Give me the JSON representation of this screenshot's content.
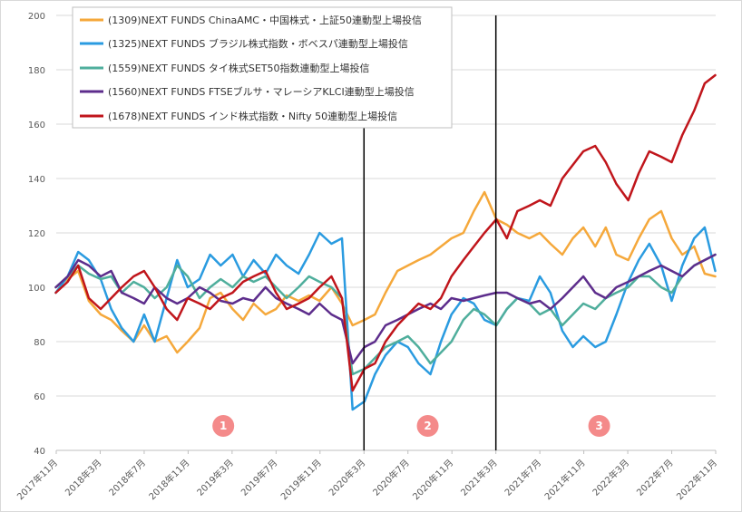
{
  "chart_data": {
    "type": "line",
    "title": "",
    "xlabel": "",
    "ylabel": "",
    "ylim": [
      40,
      200
    ],
    "yticks": [
      40,
      60,
      80,
      100,
      120,
      140,
      160,
      180,
      200
    ],
    "ytick_labels": [
      "40",
      "60",
      "80",
      "100",
      "120",
      "140",
      "160",
      "180",
      "200"
    ],
    "xlim": [
      "2017-11",
      "2022-11"
    ],
    "xtick_labels": [
      "2017年11月",
      "2018年3月",
      "2018年7月",
      "2018年11月",
      "2019年3月",
      "2019年7月",
      "2019年11月",
      "2020年3月",
      "2020年7月",
      "2020年11月",
      "2021年3月",
      "2021年7月",
      "2021年11月",
      "2022年3月",
      "2022年7月",
      "2022年11月"
    ],
    "grid": "horizontal",
    "legend_position": "top-left",
    "vertical_lines": [
      {
        "date": "2020-03"
      },
      {
        "date": "2021-03"
      }
    ],
    "period_markers": [
      {
        "label": "1",
        "x": 2019.1,
        "y": 49
      },
      {
        "label": "2",
        "x": 2020.65,
        "y": 49
      },
      {
        "label": "3",
        "x": 2021.95,
        "y": 49
      }
    ],
    "marker_color": "#f48a8a",
    "series": [
      {
        "name": "(1309)NEXT FUNDS ChinaAMC・中国株式・上証50連動型上場投信",
        "color": "#f5a83b",
        "x": [
          2017.83,
          2017.92,
          2018.0,
          2018.08,
          2018.17,
          2018.25,
          2018.33,
          2018.42,
          2018.5,
          2018.58,
          2018.67,
          2018.75,
          2018.83,
          2018.92,
          2019.0,
          2019.08,
          2019.17,
          2019.25,
          2019.33,
          2019.42,
          2019.5,
          2019.58,
          2019.67,
          2019.75,
          2019.83,
          2019.92,
          2020.0,
          2020.08,
          2020.17,
          2020.25,
          2020.33,
          2020.42,
          2020.5,
          2020.58,
          2020.67,
          2020.75,
          2020.83,
          2020.92,
          2021.0,
          2021.08,
          2021.17,
          2021.25,
          2021.33,
          2021.42,
          2021.5,
          2021.58,
          2021.67,
          2021.75,
          2021.83,
          2021.92,
          2022.0,
          2022.08,
          2022.17,
          2022.25,
          2022.33,
          2022.42,
          2022.5,
          2022.58,
          2022.67,
          2022.75,
          2022.83
        ],
        "values": [
          100,
          103,
          106,
          95,
          90,
          88,
          84,
          80,
          86,
          80,
          82,
          76,
          80,
          85,
          96,
          98,
          92,
          88,
          94,
          90,
          92,
          97,
          95,
          97,
          95,
          100,
          94,
          86,
          88,
          90,
          98,
          106,
          108,
          110,
          112,
          115,
          118,
          120,
          128,
          135,
          125,
          123,
          120,
          118,
          120,
          116,
          112,
          118,
          122,
          115,
          122,
          112,
          110,
          118,
          125,
          128,
          118,
          112,
          115,
          105,
          104
        ]
      },
      {
        "name": "(1325)NEXT FUNDS ブラジル株式指数・ボベスパ連動型上場投信",
        "color": "#2a9be0",
        "x": [
          2017.83,
          2017.92,
          2018.0,
          2018.08,
          2018.17,
          2018.25,
          2018.33,
          2018.42,
          2018.5,
          2018.58,
          2018.67,
          2018.75,
          2018.83,
          2018.92,
          2019.0,
          2019.08,
          2019.17,
          2019.25,
          2019.33,
          2019.42,
          2019.5,
          2019.58,
          2019.67,
          2019.75,
          2019.83,
          2019.92,
          2020.0,
          2020.08,
          2020.17,
          2020.25,
          2020.33,
          2020.42,
          2020.5,
          2020.58,
          2020.67,
          2020.75,
          2020.83,
          2020.92,
          2021.0,
          2021.08,
          2021.17,
          2021.25,
          2021.33,
          2021.42,
          2021.5,
          2021.58,
          2021.67,
          2021.75,
          2021.83,
          2021.92,
          2022.0,
          2022.08,
          2022.17,
          2022.25,
          2022.33,
          2022.42,
          2022.5,
          2022.58,
          2022.67,
          2022.75,
          2022.83
        ],
        "values": [
          98,
          104,
          113,
          110,
          103,
          92,
          85,
          80,
          90,
          80,
          96,
          110,
          100,
          103,
          112,
          108,
          112,
          104,
          110,
          105,
          112,
          108,
          105,
          112,
          120,
          116,
          118,
          55,
          58,
          68,
          75,
          80,
          78,
          72,
          68,
          80,
          90,
          96,
          94,
          88,
          86,
          92,
          96,
          95,
          104,
          98,
          84,
          78,
          82,
          78,
          80,
          90,
          102,
          110,
          116,
          108,
          95,
          108,
          118,
          122,
          106
        ]
      },
      {
        "name": "(1559)NEXT FUNDS タイ株式SET50指数連動型上場投信",
        "color": "#4fae9c",
        "x": [
          2017.83,
          2017.92,
          2018.0,
          2018.08,
          2018.17,
          2018.25,
          2018.33,
          2018.42,
          2018.5,
          2018.58,
          2018.67,
          2018.75,
          2018.83,
          2018.92,
          2019.0,
          2019.08,
          2019.17,
          2019.25,
          2019.33,
          2019.42,
          2019.5,
          2019.58,
          2019.67,
          2019.75,
          2019.83,
          2019.92,
          2020.0,
          2020.08,
          2020.17,
          2020.25,
          2020.33,
          2020.42,
          2020.5,
          2020.58,
          2020.67,
          2020.75,
          2020.83,
          2020.92,
          2021.0,
          2021.08,
          2021.17,
          2021.25,
          2021.33,
          2021.42,
          2021.5,
          2021.58,
          2021.67,
          2021.75,
          2021.83,
          2021.92,
          2022.0,
          2022.08,
          2022.17,
          2022.25,
          2022.33,
          2022.42,
          2022.5,
          2022.58,
          2022.67,
          2022.75,
          2022.83
        ],
        "values": [
          100,
          104,
          108,
          105,
          103,
          104,
          98,
          102,
          100,
          96,
          100,
          108,
          104,
          96,
          100,
          103,
          100,
          104,
          102,
          104,
          100,
          96,
          100,
          104,
          102,
          100,
          96,
          68,
          70,
          74,
          78,
          80,
          82,
          78,
          72,
          76,
          80,
          88,
          92,
          90,
          86,
          92,
          96,
          94,
          90,
          92,
          86,
          90,
          94,
          92,
          96,
          98,
          100,
          104,
          104,
          100,
          98,
          104,
          108,
          110,
          112
        ]
      },
      {
        "name": "(1560)NEXT FUNDS FTSEブルサ・マレーシアKLCI連動型上場投信",
        "color": "#5d2d8c",
        "x": [
          2017.83,
          2017.92,
          2018.0,
          2018.08,
          2018.17,
          2018.25,
          2018.33,
          2018.42,
          2018.5,
          2018.58,
          2018.67,
          2018.75,
          2018.83,
          2018.92,
          2019.0,
          2019.08,
          2019.17,
          2019.25,
          2019.33,
          2019.42,
          2019.5,
          2019.58,
          2019.67,
          2019.75,
          2019.83,
          2019.92,
          2020.0,
          2020.08,
          2020.17,
          2020.25,
          2020.33,
          2020.42,
          2020.5,
          2020.58,
          2020.67,
          2020.75,
          2020.83,
          2020.92,
          2021.0,
          2021.08,
          2021.17,
          2021.25,
          2021.33,
          2021.42,
          2021.5,
          2021.58,
          2021.67,
          2021.75,
          2021.83,
          2021.92,
          2022.0,
          2022.08,
          2022.17,
          2022.25,
          2022.33,
          2022.42,
          2022.5,
          2022.58,
          2022.67,
          2022.75,
          2022.83
        ],
        "values": [
          100,
          104,
          110,
          108,
          104,
          106,
          98,
          96,
          94,
          100,
          96,
          94,
          96,
          100,
          98,
          95,
          94,
          96,
          95,
          100,
          96,
          94,
          92,
          90,
          94,
          90,
          88,
          72,
          78,
          80,
          86,
          88,
          90,
          92,
          94,
          92,
          96,
          95,
          96,
          97,
          98,
          98,
          96,
          94,
          95,
          92,
          96,
          100,
          104,
          98,
          96,
          100,
          102,
          104,
          106,
          108,
          106,
          104,
          108,
          110,
          112
        ]
      },
      {
        "name": "(1678)NEXT FUNDS インド株式指数・Nifty 50連動型上場投信",
        "color": "#c0151b",
        "x": [
          2017.83,
          2017.92,
          2018.0,
          2018.08,
          2018.17,
          2018.25,
          2018.33,
          2018.42,
          2018.5,
          2018.58,
          2018.67,
          2018.75,
          2018.83,
          2018.92,
          2019.0,
          2019.08,
          2019.17,
          2019.25,
          2019.33,
          2019.42,
          2019.5,
          2019.58,
          2019.67,
          2019.75,
          2019.83,
          2019.92,
          2020.0,
          2020.08,
          2020.17,
          2020.25,
          2020.33,
          2020.42,
          2020.5,
          2020.58,
          2020.67,
          2020.75,
          2020.83,
          2020.92,
          2021.0,
          2021.08,
          2021.17,
          2021.25,
          2021.33,
          2021.42,
          2021.5,
          2021.58,
          2021.67,
          2021.75,
          2021.83,
          2021.92,
          2022.0,
          2022.08,
          2022.17,
          2022.25,
          2022.33,
          2022.42,
          2022.5,
          2022.58,
          2022.67,
          2022.75,
          2022.83
        ],
        "values": [
          98,
          102,
          108,
          96,
          92,
          96,
          100,
          104,
          106,
          100,
          92,
          88,
          96,
          94,
          92,
          96,
          98,
          102,
          104,
          106,
          98,
          92,
          94,
          96,
          100,
          104,
          96,
          62,
          70,
          72,
          80,
          86,
          90,
          94,
          92,
          96,
          104,
          110,
          115,
          120,
          125,
          118,
          128,
          130,
          132,
          130,
          140,
          145,
          150,
          152,
          146,
          138,
          132,
          142,
          150,
          148,
          146,
          156,
          165,
          175,
          178
        ]
      }
    ]
  }
}
